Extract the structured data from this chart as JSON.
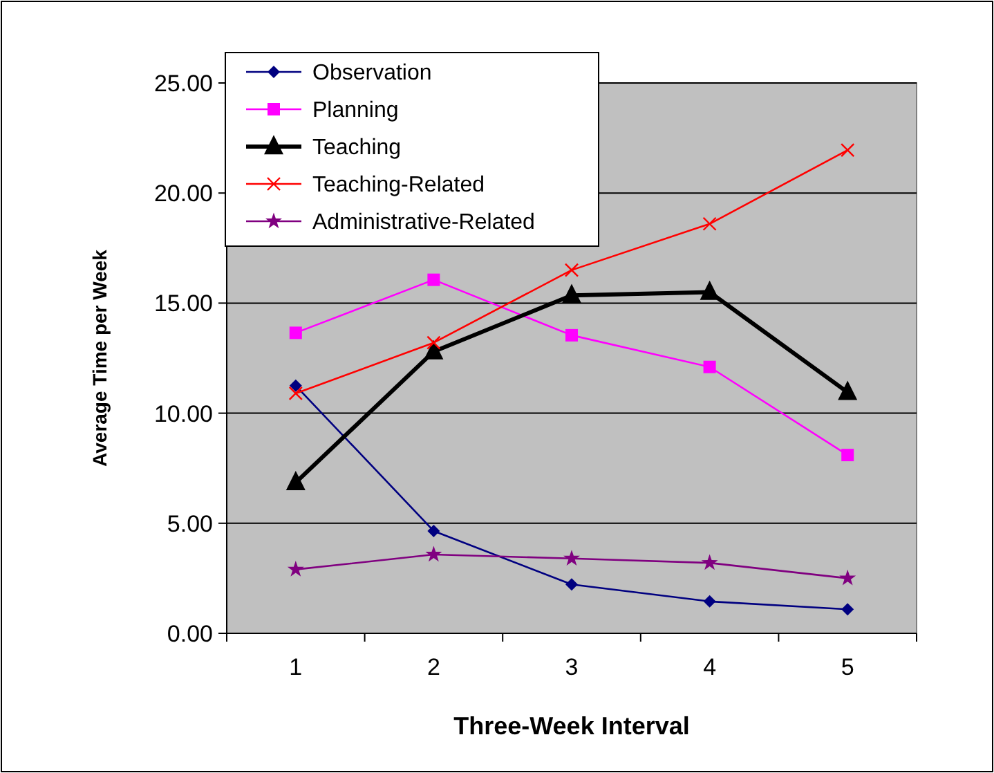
{
  "chart_data": {
    "type": "line",
    "xlabel": "Three-Week Interval",
    "ylabel": "Average Time per Week",
    "categories": [
      "1",
      "2",
      "3",
      "4",
      "5"
    ],
    "series": [
      {
        "name": "Observation",
        "color": "#000080",
        "marker": "diamond",
        "values": [
          11.25,
          4.65,
          2.22,
          1.45,
          1.09
        ]
      },
      {
        "name": "Planning",
        "color": "#ff00ff",
        "marker": "square",
        "values": [
          13.65,
          16.06,
          13.54,
          12.1,
          8.1
        ]
      },
      {
        "name": "Teaching",
        "color": "#000000",
        "marker": "triangle",
        "values": [
          6.85,
          12.8,
          15.35,
          15.5,
          10.95
        ]
      },
      {
        "name": "Teaching-Related",
        "color": "#ff0000",
        "marker": "cross",
        "values": [
          10.9,
          13.2,
          16.5,
          18.6,
          21.95
        ]
      },
      {
        "name": "Administrative-Related",
        "color": "#800080",
        "marker": "star",
        "values": [
          2.9,
          3.58,
          3.4,
          3.2,
          2.5
        ]
      }
    ],
    "ylim": [
      0,
      25
    ],
    "yticks": [
      {
        "value": 0,
        "label": "0.00"
      },
      {
        "value": 5,
        "label": "5.00"
      },
      {
        "value": 10,
        "label": "10.00"
      },
      {
        "value": 15,
        "label": "15.00"
      },
      {
        "value": 20,
        "label": "20.00"
      },
      {
        "value": 25,
        "label": "25.00"
      }
    ],
    "grid": "y",
    "legend": "top left"
  }
}
